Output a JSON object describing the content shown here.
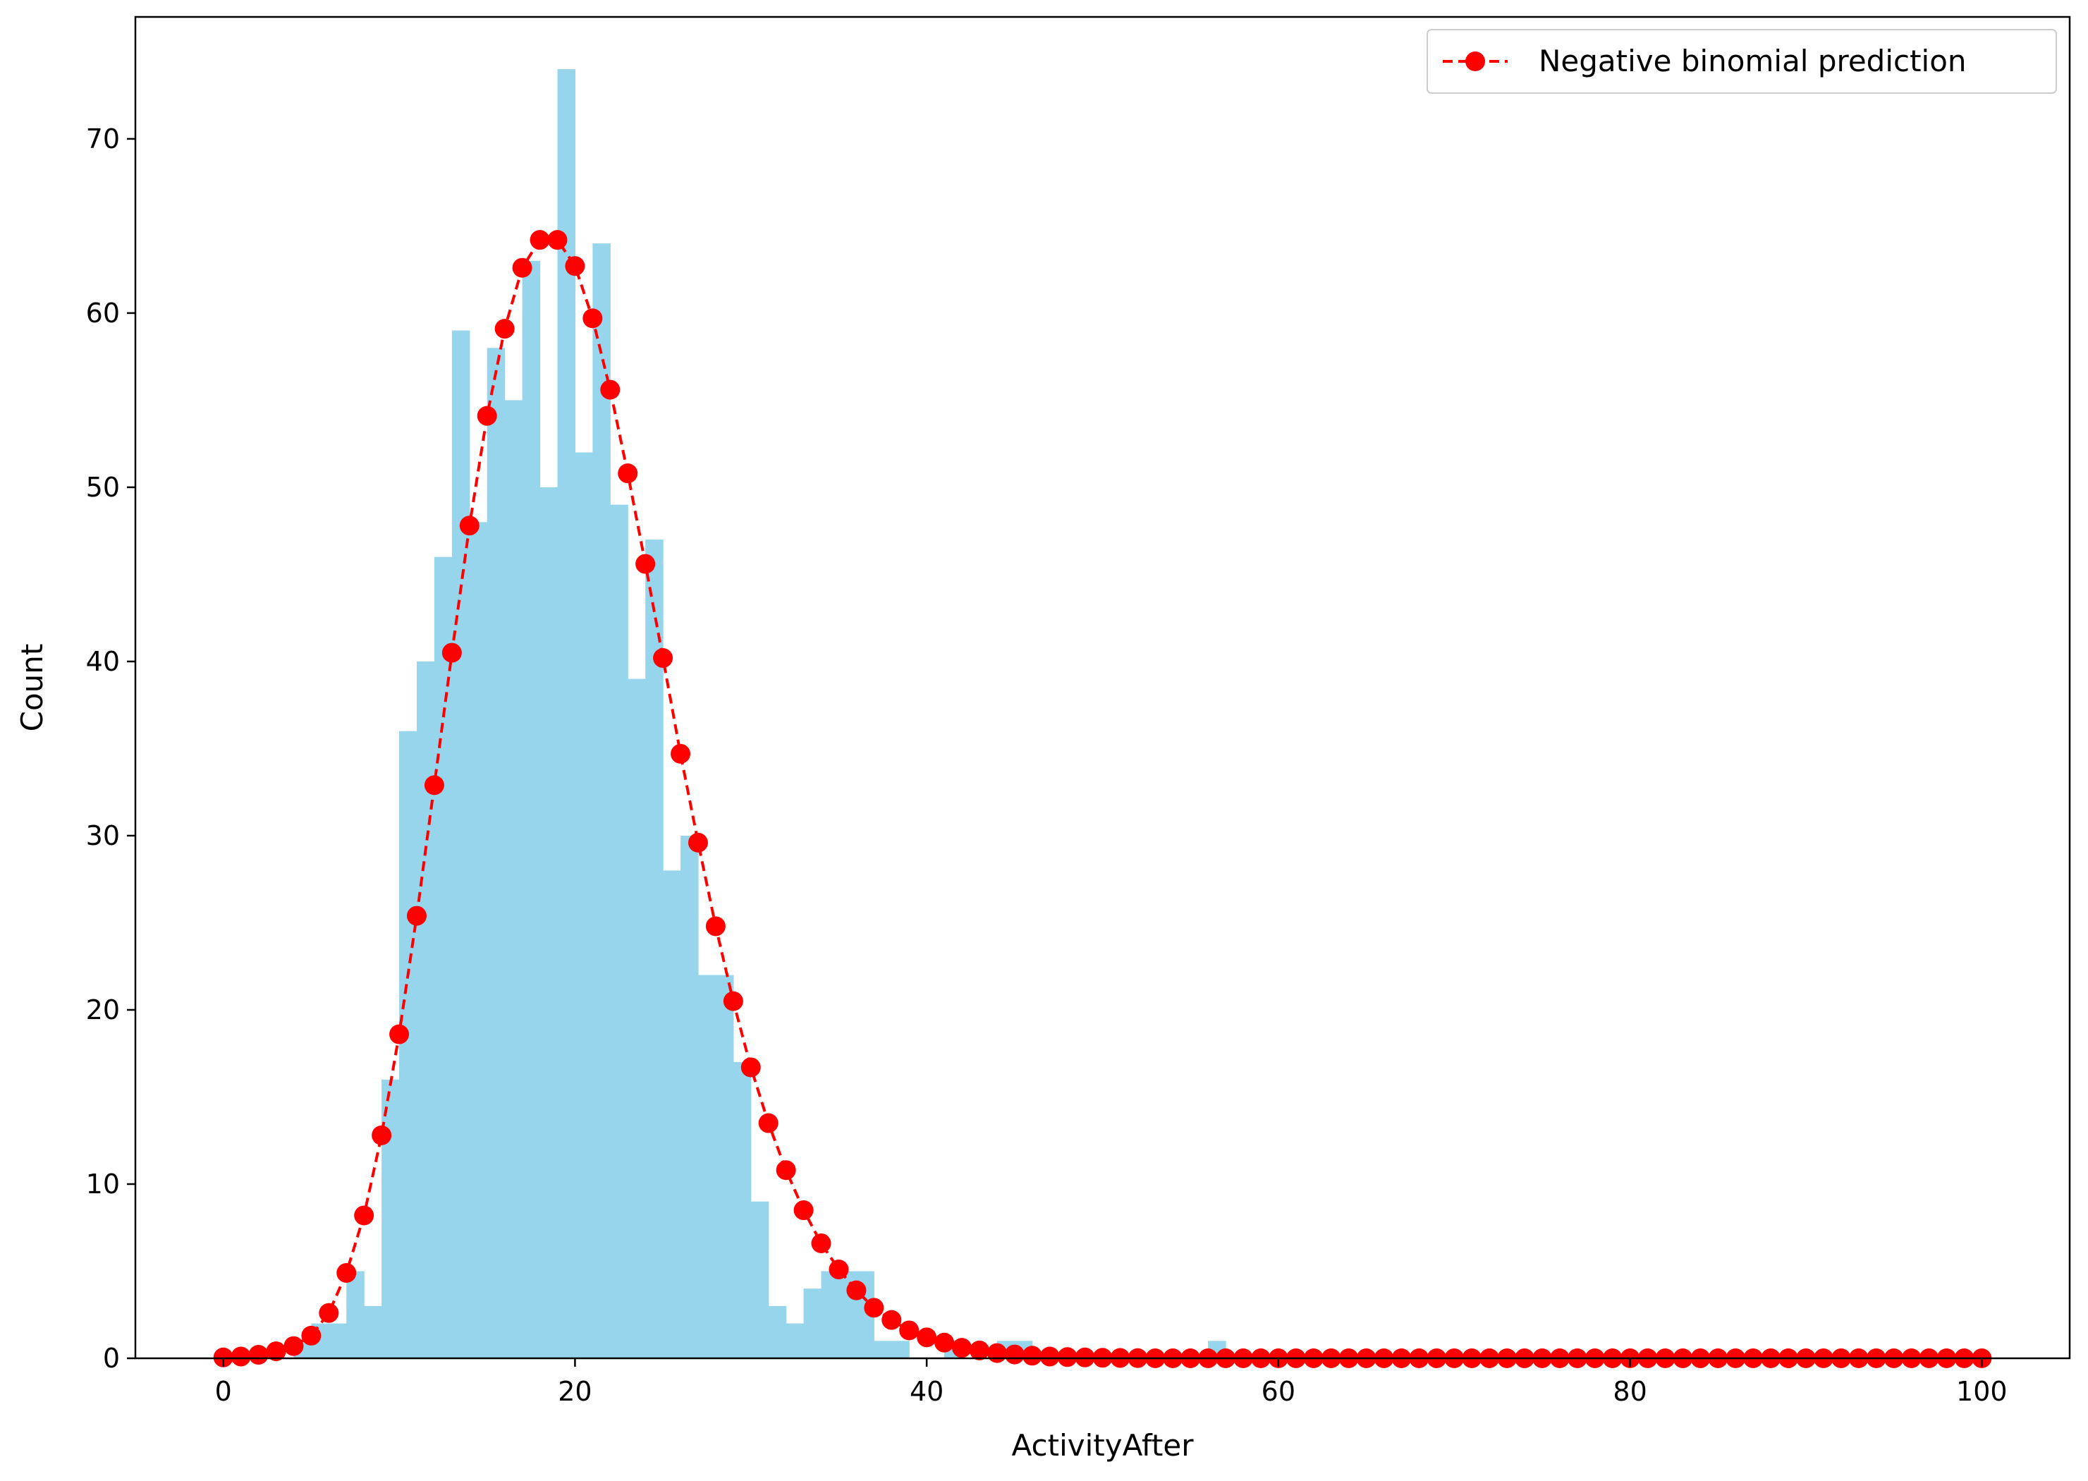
{
  "chart_data": {
    "type": "bar",
    "xlabel": "ActivityAfter",
    "ylabel": "Count",
    "xlim": [
      -5,
      105
    ],
    "ylim": [
      0,
      77
    ],
    "x_ticks": [
      0,
      20,
      40,
      60,
      80,
      100
    ],
    "y_ticks": [
      0,
      10,
      20,
      30,
      40,
      50,
      60,
      70
    ],
    "grid": false,
    "legend": {
      "placement": "top-right",
      "entries": [
        "Negative binomial prediction"
      ]
    },
    "series": [
      {
        "kind": "histogram",
        "color": "#97d5ed",
        "bin_width": 1,
        "bin_start": 0,
        "counts": [
          0,
          0,
          0,
          0,
          1,
          2,
          2,
          5,
          3,
          16,
          36,
          40,
          46,
          59,
          48,
          58,
          55,
          63,
          50,
          74,
          52,
          64,
          49,
          39,
          47,
          28,
          30,
          22,
          22,
          17,
          9,
          3,
          2,
          4,
          5,
          5,
          5,
          1,
          1,
          0,
          0,
          1,
          0,
          0,
          1,
          1,
          0,
          0,
          0,
          0,
          0,
          0,
          0,
          0,
          0,
          0,
          1,
          0,
          0,
          0,
          0,
          0,
          0,
          0,
          0,
          0,
          0,
          0,
          0,
          0,
          0,
          0,
          0,
          0,
          0,
          0,
          0,
          0,
          0,
          0,
          0,
          0,
          0,
          0,
          0,
          0,
          0,
          0,
          0,
          0,
          0,
          0,
          0,
          0,
          0,
          0,
          0,
          0,
          0,
          0
        ]
      },
      {
        "name": "Negative binomial prediction",
        "kind": "line-marker",
        "color": "#ff0000",
        "linestyle": "dashed",
        "marker": "circle",
        "x_start": 0,
        "x_step": 1,
        "values": [
          0.05,
          0.1,
          0.2,
          0.4,
          0.7,
          1.3,
          2.6,
          4.9,
          8.2,
          12.8,
          18.6,
          25.4,
          32.9,
          40.5,
          47.8,
          54.1,
          59.1,
          62.6,
          64.2,
          64.2,
          62.7,
          59.7,
          55.6,
          50.8,
          45.6,
          40.2,
          34.7,
          29.6,
          24.8,
          20.5,
          16.7,
          13.5,
          10.8,
          8.5,
          6.6,
          5.1,
          3.9,
          2.9,
          2.2,
          1.6,
          1.2,
          0.9,
          0.6,
          0.45,
          0.3,
          0.22,
          0.15,
          0.1,
          0.07,
          0.05,
          0.03,
          0.02,
          0.01,
          0,
          0,
          0,
          0,
          0,
          0,
          0,
          0,
          0,
          0,
          0,
          0,
          0,
          0,
          0,
          0,
          0,
          0,
          0,
          0,
          0,
          0,
          0,
          0,
          0,
          0,
          0,
          0,
          0,
          0,
          0,
          0,
          0,
          0,
          0,
          0,
          0,
          0,
          0,
          0,
          0,
          0,
          0,
          0,
          0,
          0,
          0,
          0
        ]
      }
    ]
  }
}
